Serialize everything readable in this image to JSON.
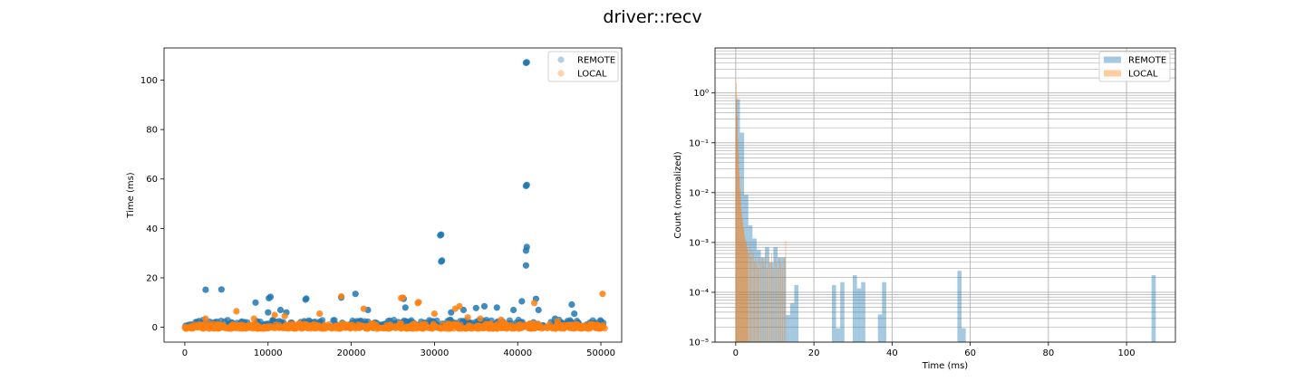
{
  "figure": {
    "title": "driver::recv"
  },
  "colors": {
    "remote": "#1f77b4",
    "local": "#ff7f0e",
    "grid": "#b0b0b0"
  },
  "chart_data": [
    {
      "type": "scatter",
      "title": "",
      "xlabel": "",
      "ylabel": "Time (ms)",
      "xlim": [
        -2500,
        52500
      ],
      "ylim": [
        -6,
        113
      ],
      "xticks": [
        0,
        10000,
        20000,
        30000,
        40000,
        50000
      ],
      "yticks": [
        0,
        20,
        40,
        60,
        80,
        100
      ],
      "grid": false,
      "legend": {
        "placement": "top-right",
        "entries": [
          "REMOTE",
          "LOCAL"
        ]
      },
      "series": [
        {
          "name": "REMOTE",
          "dense_band": {
            "x_range": [
              0,
              50500
            ],
            "y_range": [
              0,
              3
            ]
          },
          "points": [
            [
              2500,
              15.2
            ],
            [
              4400,
              15.3
            ],
            [
              8500,
              10
            ],
            [
              10100,
              11.8
            ],
            [
              10300,
              12.3
            ],
            [
              10000,
              6
            ],
            [
              11500,
              7
            ],
            [
              12200,
              6
            ],
            [
              14500,
              11.2
            ],
            [
              14600,
              11.6
            ],
            [
              18800,
              12
            ],
            [
              20500,
              13.5
            ],
            [
              22000,
              7
            ],
            [
              26300,
              11.5
            ],
            [
              26500,
              8
            ],
            [
              30700,
              37.2
            ],
            [
              30800,
              37.5
            ],
            [
              30800,
              26.6
            ],
            [
              30900,
              27
            ],
            [
              32000,
              6
            ],
            [
              33500,
              7
            ],
            [
              35000,
              7.8
            ],
            [
              36000,
              8.5
            ],
            [
              37500,
              8
            ],
            [
              39500,
              7
            ],
            [
              40500,
              10.5
            ],
            [
              41000,
              107
            ],
            [
              41100,
              107.2
            ],
            [
              41000,
              57.2
            ],
            [
              41100,
              57.6
            ],
            [
              41000,
              31
            ],
            [
              41100,
              32.5
            ],
            [
              41000,
              25
            ],
            [
              42200,
              11.5
            ],
            [
              42500,
              7
            ],
            [
              44500,
              3.5
            ],
            [
              46500,
              9.2
            ],
            [
              46800,
              5.5
            ],
            [
              50000,
              2.5
            ]
          ]
        },
        {
          "name": "LOCAL",
          "dense_band": {
            "x_range": [
              0,
              50500
            ],
            "y_range": [
              -0.5,
              1.5
            ]
          },
          "points": [
            [
              2500,
              3.5
            ],
            [
              6200,
              6.5
            ],
            [
              8300,
              3.5
            ],
            [
              10800,
              5
            ],
            [
              12000,
              4.5
            ],
            [
              16200,
              5.5
            ],
            [
              18800,
              12.5
            ],
            [
              21500,
              7.5
            ],
            [
              26000,
              11.8
            ],
            [
              26200,
              12
            ],
            [
              28000,
              9.8
            ],
            [
              28100,
              10.2
            ],
            [
              30000,
              5.5
            ],
            [
              32500,
              7.5
            ],
            [
              33000,
              8.5
            ],
            [
              34000,
              4
            ],
            [
              35500,
              3.5
            ],
            [
              38000,
              3
            ],
            [
              42000,
              9.8
            ],
            [
              44800,
              2.5
            ],
            [
              50200,
              13.5
            ]
          ]
        }
      ]
    },
    {
      "type": "bar",
      "subtype": "histogram",
      "title": "",
      "xlabel": "Time (ms)",
      "ylabel": "Count (normalized)",
      "xlim": [
        -5.3,
        112.5
      ],
      "ylim": [
        1e-05,
        8
      ],
      "yscale": "log",
      "xticks": [
        0,
        20,
        40,
        60,
        80,
        100
      ],
      "yticks": [
        {
          "value": 1e-05,
          "label": "10⁻⁵"
        },
        {
          "value": 0.0001,
          "label": "10⁻⁴"
        },
        {
          "value": 0.001,
          "label": "10⁻³"
        },
        {
          "value": 0.01,
          "label": "10⁻²"
        },
        {
          "value": 0.1,
          "label": "10⁻¹"
        },
        {
          "value": 1,
          "label": "10⁰"
        }
      ],
      "grid": true,
      "legend": {
        "placement": "top-right",
        "entries": [
          "REMOTE",
          "LOCAL"
        ]
      },
      "series": [
        {
          "name": "REMOTE",
          "bin_width": 1.07,
          "bins": [
            [
              0.0,
              0.75
            ],
            [
              1.07,
              0.16
            ],
            [
              2.14,
              0.009
            ],
            [
              3.21,
              0.0022
            ],
            [
              4.28,
              0.0012
            ],
            [
              5.35,
              0.0007
            ],
            [
              6.42,
              0.0005
            ],
            [
              7.49,
              0.0008
            ],
            [
              8.56,
              0.0004
            ],
            [
              9.63,
              0.0008
            ],
            [
              10.7,
              0.0005
            ],
            [
              11.77,
              0.0005
            ],
            [
              12.84,
              3.5e-05
            ],
            [
              13.91,
              6e-05
            ],
            [
              14.98,
              0.00014
            ],
            [
              24.6,
              0.00014
            ],
            [
              25.67,
              1.9e-05
            ],
            [
              26.74,
              0.00016
            ],
            [
              29.95,
              0.00022
            ],
            [
              31.02,
              0.00012
            ],
            [
              32.09,
              0.00016
            ],
            [
              36.37,
              3.6e-05
            ],
            [
              37.44,
              0.00016
            ],
            [
              56.71,
              0.00027
            ],
            [
              57.78,
              1.9e-05
            ],
            [
              106.4,
              0.00022
            ]
          ]
        },
        {
          "name": "LOCAL",
          "bin_width": 0.14,
          "bins": [
            [
              -0.1,
              0.2
            ],
            [
              0.04,
              1.6
            ],
            [
              0.18,
              0.9
            ],
            [
              0.32,
              0.35
            ],
            [
              0.46,
              0.12
            ],
            [
              0.6,
              0.06
            ],
            [
              0.74,
              0.03
            ],
            [
              0.88,
              0.02
            ],
            [
              1.02,
              0.012
            ],
            [
              1.16,
              0.008
            ],
            [
              1.3,
              0.005
            ],
            [
              1.44,
              0.004
            ],
            [
              1.58,
              0.003
            ],
            [
              1.72,
              0.0025
            ],
            [
              1.86,
              0.002
            ],
            [
              2.0,
              0.0018
            ],
            [
              2.14,
              0.0015
            ],
            [
              2.28,
              0.0012
            ],
            [
              2.42,
              0.001
            ],
            [
              2.56,
              0.0011
            ],
            [
              2.7,
              0.0009
            ],
            [
              2.84,
              0.0008
            ],
            [
              2.98,
              0.0007
            ],
            [
              3.2,
              0.0006
            ],
            [
              3.5,
              0.0008
            ],
            [
              3.8,
              0.0005
            ],
            [
              4.1,
              0.0007
            ],
            [
              4.4,
              0.0006
            ],
            [
              4.7,
              0.0004
            ],
            [
              5.0,
              0.0005
            ],
            [
              5.3,
              0.0004
            ],
            [
              5.6,
              0.0003
            ],
            [
              5.9,
              0.0005
            ],
            [
              6.3,
              0.0004
            ],
            [
              6.7,
              0.0005
            ],
            [
              7.1,
              0.0004
            ],
            [
              7.5,
              0.0006
            ],
            [
              7.9,
              0.0003
            ],
            [
              8.3,
              0.0005
            ],
            [
              8.7,
              0.0004
            ],
            [
              9.1,
              0.0006
            ],
            [
              9.5,
              0.0003
            ],
            [
              9.9,
              0.0005
            ],
            [
              10.3,
              0.0004
            ],
            [
              10.7,
              0.0003
            ],
            [
              11.1,
              0.0005
            ],
            [
              11.5,
              0.0004
            ],
            [
              11.9,
              0.0003
            ],
            [
              12.3,
              0.0005
            ],
            [
              12.7,
              0.0011
            ]
          ]
        }
      ]
    }
  ]
}
